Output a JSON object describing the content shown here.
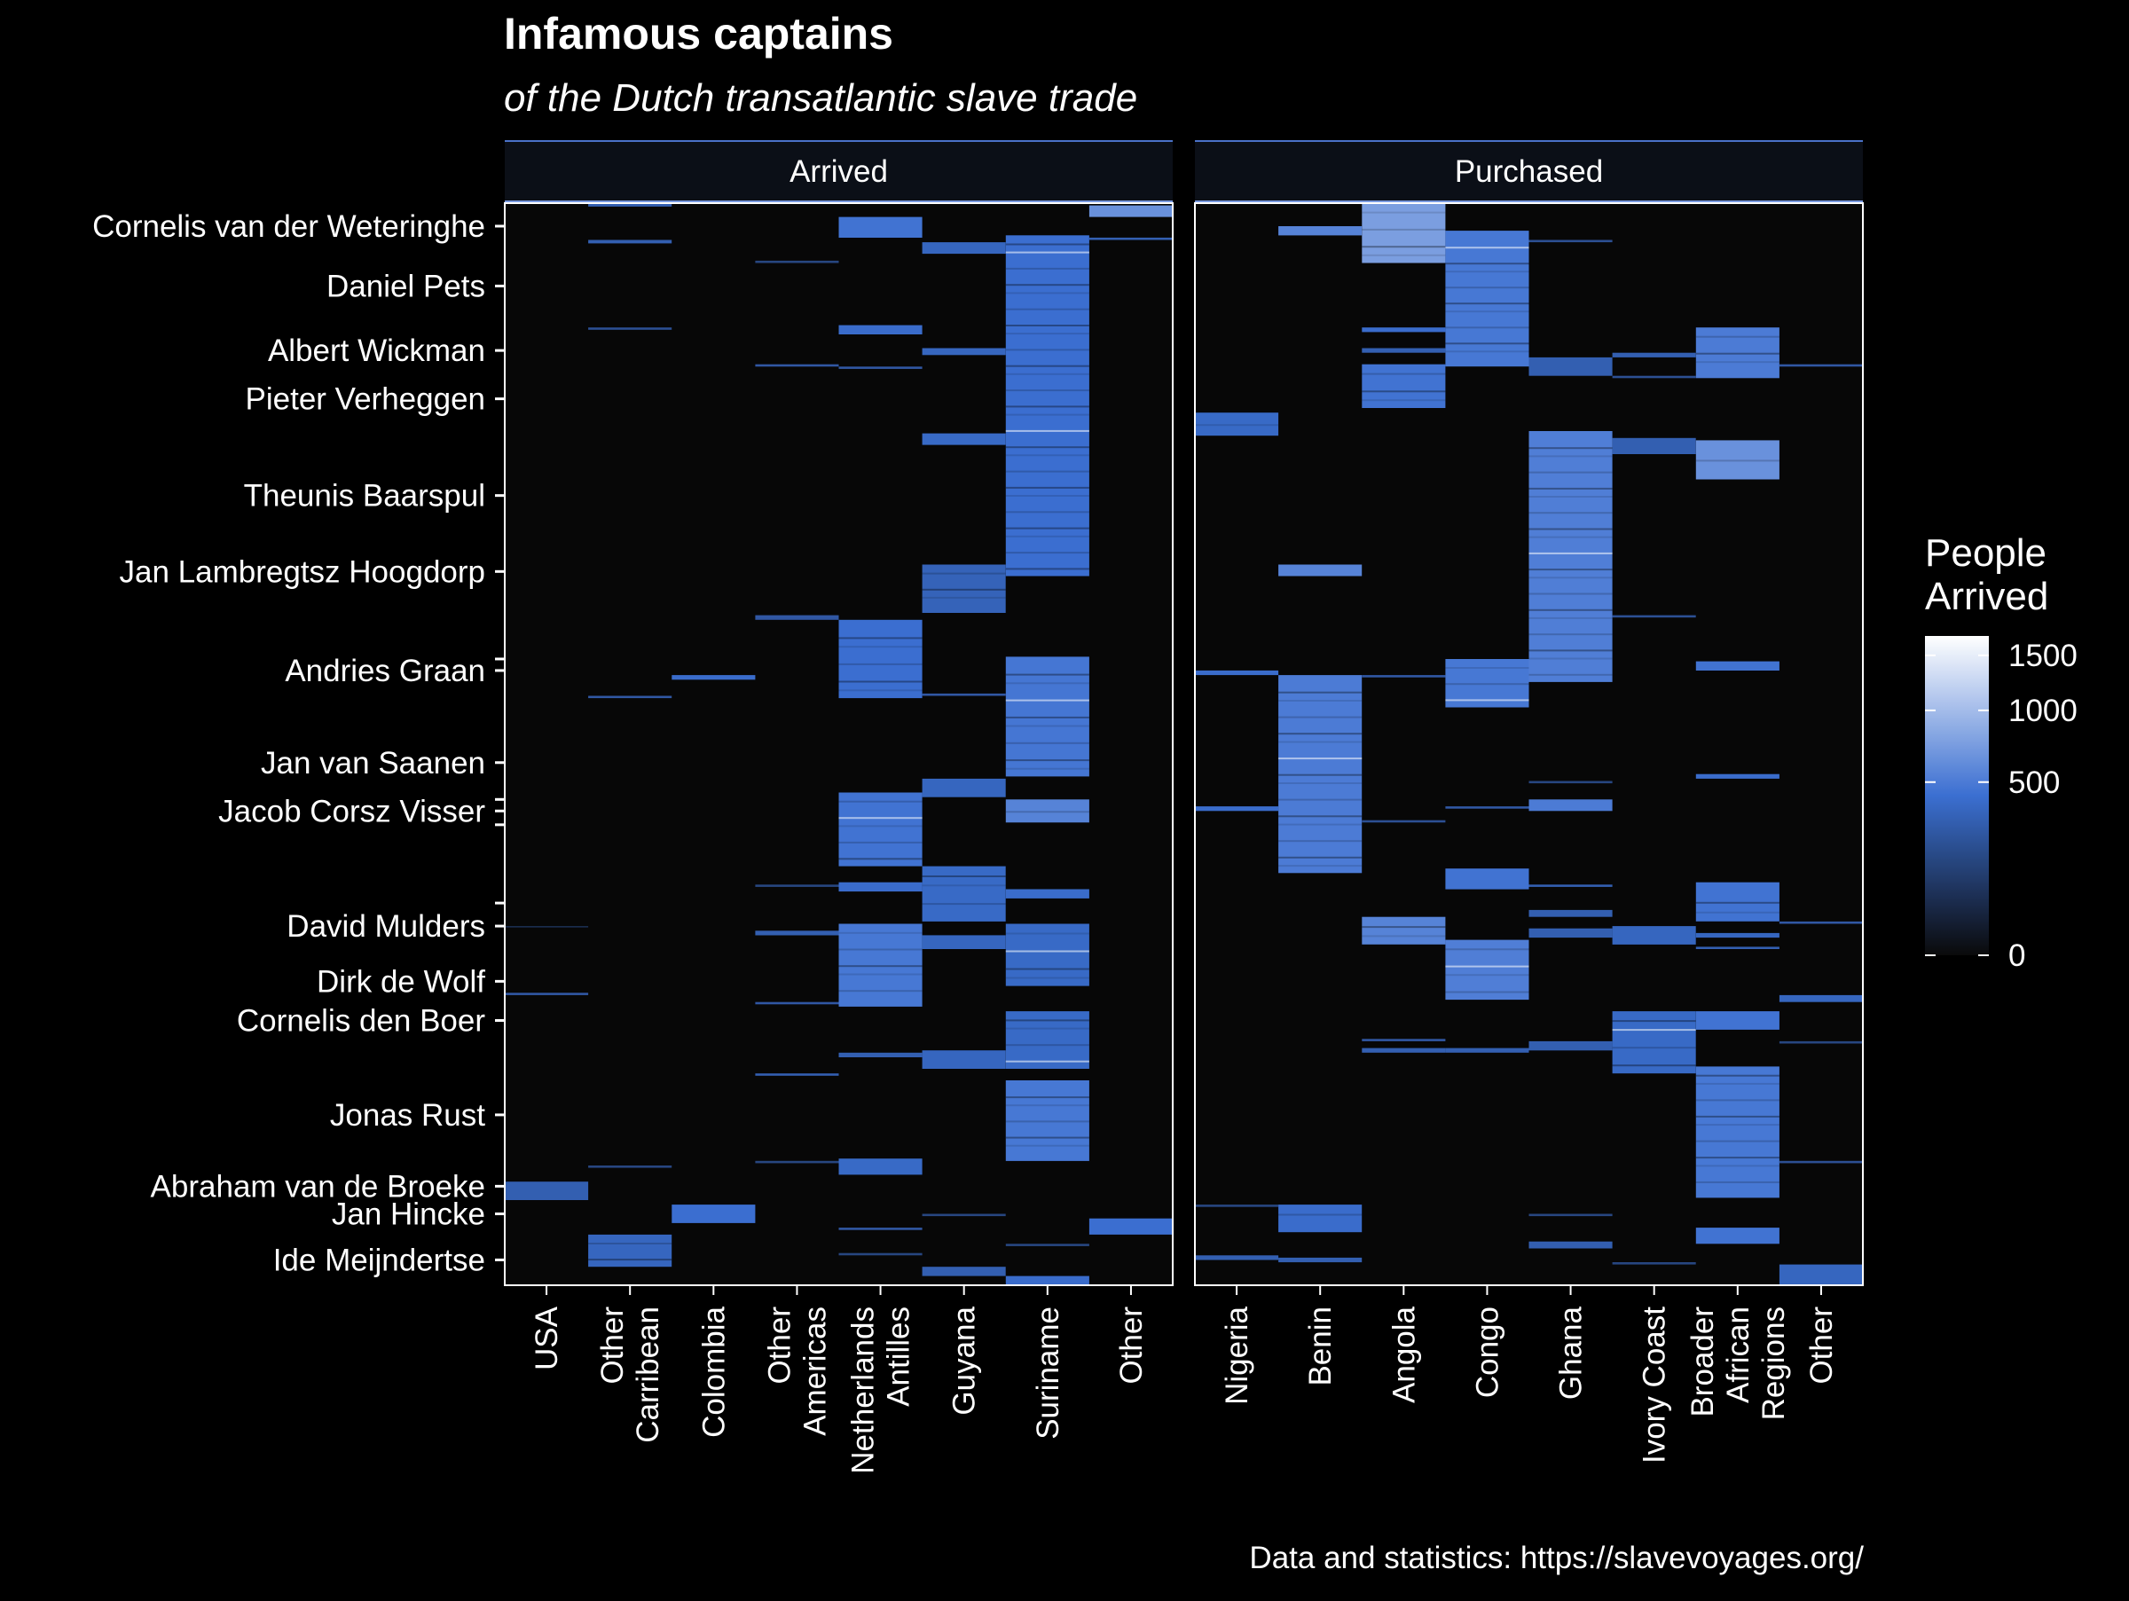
{
  "chart_data": {
    "type": "heatmap",
    "title": "Infamous captains",
    "subtitle": "of the Dutch transatlantic slave trade",
    "caption": "Data and statistics: https://slavevoyages.org/",
    "facets": [
      {
        "name": "Arrived",
        "categories": [
          "USA",
          "Other Carribean",
          "Colombia",
          "Other Americas",
          "Netherlands Antilles",
          "Guyana",
          "Suriname",
          "Other"
        ],
        "tick_lines": [
          [
            "USA"
          ],
          [
            "Other",
            "Carribean"
          ],
          [
            "Colombia"
          ],
          [
            "Other",
            "Americas"
          ],
          [
            "Netherlands",
            "Antilles"
          ],
          [
            "Guyana"
          ],
          [
            "Suriname"
          ],
          [
            "Other"
          ]
        ]
      },
      {
        "name": "Purchased",
        "categories": [
          "Nigeria",
          "Benin",
          "Angola",
          "Congo",
          "Ghana",
          "Ivory Coast",
          "Broader African Regions",
          "Other"
        ],
        "tick_lines": [
          [
            "Nigeria"
          ],
          [
            "Benin"
          ],
          [
            "Angola"
          ],
          [
            "Congo"
          ],
          [
            "Ghana"
          ],
          [
            "Ivory Coast"
          ],
          [
            "Broader",
            "African",
            "Regions"
          ],
          [
            "Other"
          ]
        ]
      }
    ],
    "ylabels": [
      "Cornelis van der Weteringhe",
      "Daniel Pets",
      "Albert Wickman",
      "Pieter Verheggen",
      "Theunis Baarspul",
      "Jan Lambregtsz Hoogdorp",
      "Andries Graan",
      "Jan van Saanen",
      "Jacob Corsz Visser",
      "David Mulders",
      "Dirk de Wolf",
      "Cornelis den Boer",
      "Jonas Rust",
      "Abraham van de Broeke",
      "Jan Hincke",
      "Ide Meijndertse"
    ],
    "captain_rows": [
      {
        "name": "Cornelis van der Weteringhe",
        "row": 1.0
      },
      {
        "name": "Daniel Pets",
        "row": 3.6
      },
      {
        "name": "Albert Wickman",
        "row": 6.4
      },
      {
        "name": "Pieter Verheggen",
        "row": 8.5
      },
      {
        "name": "Theunis Baarspul",
        "row": 12.7
      },
      {
        "name": "Jan Lambregtsz Hoogdorp",
        "row": 16.0
      },
      {
        "name": "Andries Graan",
        "row": 20.3
      },
      {
        "name": "Jan van Saanen",
        "row": 24.3
      },
      {
        "name": "Jacob Corsz Visser",
        "row": 26.4
      },
      {
        "name": "David Mulders",
        "row": 31.4
      },
      {
        "name": "Dirk de Wolf",
        "row": 33.8
      },
      {
        "name": "Cornelis den Boer",
        "row": 35.5
      },
      {
        "name": "Jonas Rust",
        "row": 39.6
      },
      {
        "name": "Abraham van de Broeke",
        "row": 42.7
      },
      {
        "name": "Jan Hincke",
        "row": 43.9
      },
      {
        "name": "Ide Meijndertse",
        "row": 45.9
      }
    ],
    "unlabeled_tick_rows": [
      19.8,
      25.9,
      27.0,
      30.4
    ],
    "y_range": [
      0,
      47
    ],
    "legend": {
      "title_lines": [
        "People",
        "Arrived"
      ],
      "breaks": [
        0,
        500,
        1000,
        1500
      ],
      "tick_labels": [
        "0",
        "500",
        "1000",
        "1500"
      ],
      "max": 1700,
      "transform": "sqrt",
      "colors": [
        "#0a0a0a",
        "#3b6fd1",
        "#ffffff"
      ]
    },
    "cells": {
      "Arrived": [
        {
          "col": 0,
          "y0": 42.5,
          "y1": 43.3,
          "value": 300
        },
        {
          "col": 0,
          "y0": 31.4,
          "y1": 31.45,
          "value": 60
        },
        {
          "col": 0,
          "y0": 34.3,
          "y1": 34.4,
          "value": 250
        },
        {
          "col": 1,
          "y0": 0.0,
          "y1": 0.15,
          "value": 300
        },
        {
          "col": 1,
          "y0": 1.6,
          "y1": 1.75,
          "value": 300
        },
        {
          "col": 1,
          "y0": 5.4,
          "y1": 5.5,
          "value": 200
        },
        {
          "col": 1,
          "y0": 21.4,
          "y1": 21.5,
          "value": 250
        },
        {
          "col": 1,
          "y0": 41.8,
          "y1": 41.9,
          "value": 150
        },
        {
          "col": 1,
          "y0": 44.8,
          "y1": 46.2,
          "value": 350
        },
        {
          "col": 2,
          "y0": 20.5,
          "y1": 20.7,
          "value": 400
        },
        {
          "col": 2,
          "y0": 43.5,
          "y1": 44.3,
          "value": 420
        },
        {
          "col": 3,
          "y0": 2.5,
          "y1": 2.6,
          "value": 150
        },
        {
          "col": 3,
          "y0": 7.0,
          "y1": 7.1,
          "value": 250
        },
        {
          "col": 3,
          "y0": 17.9,
          "y1": 18.1,
          "value": 250
        },
        {
          "col": 3,
          "y0": 29.6,
          "y1": 29.7,
          "value": 150
        },
        {
          "col": 3,
          "y0": 31.6,
          "y1": 31.8,
          "value": 300
        },
        {
          "col": 3,
          "y0": 34.7,
          "y1": 34.8,
          "value": 250
        },
        {
          "col": 3,
          "y0": 37.8,
          "y1": 37.9,
          "value": 300
        },
        {
          "col": 3,
          "y0": 41.6,
          "y1": 41.7,
          "value": 150
        },
        {
          "col": 4,
          "y0": 0.6,
          "y1": 1.5,
          "value": 450
        },
        {
          "col": 4,
          "y0": 5.3,
          "y1": 5.7,
          "value": 400
        },
        {
          "col": 4,
          "y0": 7.1,
          "y1": 7.2,
          "value": 250
        },
        {
          "col": 4,
          "y0": 18.1,
          "y1": 21.5,
          "value": 420
        },
        {
          "col": 4,
          "y0": 25.6,
          "y1": 28.8,
          "value": 450
        },
        {
          "col": 4,
          "y0": 29.5,
          "y1": 29.9,
          "value": 400
        },
        {
          "col": 4,
          "y0": 31.3,
          "y1": 34.9,
          "value": 480
        },
        {
          "col": 4,
          "y0": 36.9,
          "y1": 37.1,
          "value": 300
        },
        {
          "col": 4,
          "y0": 41.5,
          "y1": 42.2,
          "value": 380
        },
        {
          "col": 4,
          "y0": 44.5,
          "y1": 44.6,
          "value": 250
        },
        {
          "col": 4,
          "y0": 45.6,
          "y1": 45.7,
          "value": 150
        },
        {
          "col": 5,
          "y0": 1.7,
          "y1": 2.2,
          "value": 350
        },
        {
          "col": 5,
          "y0": 6.3,
          "y1": 6.6,
          "value": 350
        },
        {
          "col": 5,
          "y0": 10.0,
          "y1": 10.5,
          "value": 380
        },
        {
          "col": 5,
          "y0": 15.7,
          "y1": 17.8,
          "value": 330
        },
        {
          "col": 5,
          "y0": 21.3,
          "y1": 21.4,
          "value": 250
        },
        {
          "col": 5,
          "y0": 25.0,
          "y1": 25.8,
          "value": 350
        },
        {
          "col": 5,
          "y0": 28.8,
          "y1": 31.2,
          "value": 380
        },
        {
          "col": 5,
          "y0": 31.8,
          "y1": 32.4,
          "value": 350
        },
        {
          "col": 5,
          "y0": 36.8,
          "y1": 37.6,
          "value": 350
        },
        {
          "col": 5,
          "y0": 43.9,
          "y1": 44.0,
          "value": 150
        },
        {
          "col": 5,
          "y0": 46.2,
          "y1": 46.6,
          "value": 300
        },
        {
          "col": 6,
          "y0": 1.4,
          "y1": 16.2,
          "value": 420
        },
        {
          "col": 6,
          "y0": 19.7,
          "y1": 24.9,
          "value": 470
        },
        {
          "col": 6,
          "y0": 25.9,
          "y1": 26.9,
          "value": 550
        },
        {
          "col": 6,
          "y0": 29.8,
          "y1": 30.2,
          "value": 400
        },
        {
          "col": 6,
          "y0": 31.3,
          "y1": 34.0,
          "value": 380
        },
        {
          "col": 6,
          "y0": 35.1,
          "y1": 37.6,
          "value": 380
        },
        {
          "col": 6,
          "y0": 38.1,
          "y1": 41.6,
          "value": 480
        },
        {
          "col": 6,
          "y0": 45.2,
          "y1": 45.3,
          "value": 150
        },
        {
          "col": 6,
          "y0": 46.6,
          "y1": 47.0,
          "value": 400
        },
        {
          "col": 7,
          "y0": 0.1,
          "y1": 0.6,
          "value": 650
        },
        {
          "col": 7,
          "y0": 1.5,
          "y1": 1.6,
          "value": 300
        },
        {
          "col": 7,
          "y0": 44.1,
          "y1": 44.8,
          "value": 420
        }
      ],
      "Purchased": [
        {
          "col": 0,
          "y0": 9.1,
          "y1": 10.1,
          "value": 380
        },
        {
          "col": 0,
          "y0": 20.3,
          "y1": 20.5,
          "value": 400
        },
        {
          "col": 0,
          "y0": 26.2,
          "y1": 26.4,
          "value": 400
        },
        {
          "col": 0,
          "y0": 43.5,
          "y1": 43.6,
          "value": 150
        },
        {
          "col": 0,
          "y0": 45.7,
          "y1": 45.9,
          "value": 300
        },
        {
          "col": 1,
          "y0": 1.0,
          "y1": 1.4,
          "value": 550
        },
        {
          "col": 1,
          "y0": 15.7,
          "y1": 16.2,
          "value": 550
        },
        {
          "col": 1,
          "y0": 20.5,
          "y1": 29.1,
          "value": 500
        },
        {
          "col": 1,
          "y0": 43.5,
          "y1": 44.7,
          "value": 400
        },
        {
          "col": 1,
          "y0": 45.8,
          "y1": 46.0,
          "value": 300
        },
        {
          "col": 2,
          "y0": 0.0,
          "y1": 2.6,
          "value": 750
        },
        {
          "col": 2,
          "y0": 5.4,
          "y1": 5.6,
          "value": 400
        },
        {
          "col": 2,
          "y0": 6.3,
          "y1": 6.5,
          "value": 300
        },
        {
          "col": 2,
          "y0": 7.0,
          "y1": 8.9,
          "value": 450
        },
        {
          "col": 2,
          "y0": 20.5,
          "y1": 20.6,
          "value": 250
        },
        {
          "col": 2,
          "y0": 26.8,
          "y1": 26.9,
          "value": 200
        },
        {
          "col": 2,
          "y0": 31.0,
          "y1": 32.2,
          "value": 550
        },
        {
          "col": 2,
          "y0": 36.3,
          "y1": 36.4,
          "value": 250
        },
        {
          "col": 2,
          "y0": 36.7,
          "y1": 36.9,
          "value": 300
        },
        {
          "col": 3,
          "y0": 1.2,
          "y1": 7.1,
          "value": 480
        },
        {
          "col": 3,
          "y0": 19.8,
          "y1": 21.9,
          "value": 480
        },
        {
          "col": 3,
          "y0": 26.2,
          "y1": 26.3,
          "value": 250
        },
        {
          "col": 3,
          "y0": 28.9,
          "y1": 29.8,
          "value": 450
        },
        {
          "col": 3,
          "y0": 32.0,
          "y1": 34.6,
          "value": 520
        },
        {
          "col": 3,
          "y0": 36.7,
          "y1": 36.9,
          "value": 300
        },
        {
          "col": 4,
          "y0": 1.6,
          "y1": 1.7,
          "value": 200
        },
        {
          "col": 4,
          "y0": 6.7,
          "y1": 7.5,
          "value": 300
        },
        {
          "col": 4,
          "y0": 9.9,
          "y1": 20.8,
          "value": 520
        },
        {
          "col": 4,
          "y0": 25.1,
          "y1": 25.2,
          "value": 150
        },
        {
          "col": 4,
          "y0": 25.9,
          "y1": 26.4,
          "value": 500
        },
        {
          "col": 4,
          "y0": 29.6,
          "y1": 29.7,
          "value": 300
        },
        {
          "col": 4,
          "y0": 30.7,
          "y1": 31.0,
          "value": 300
        },
        {
          "col": 4,
          "y0": 31.5,
          "y1": 31.9,
          "value": 300
        },
        {
          "col": 4,
          "y0": 36.4,
          "y1": 36.8,
          "value": 300
        },
        {
          "col": 4,
          "y0": 43.9,
          "y1": 44.0,
          "value": 150
        },
        {
          "col": 4,
          "y0": 45.1,
          "y1": 45.4,
          "value": 300
        },
        {
          "col": 5,
          "y0": 6.5,
          "y1": 6.7,
          "value": 300
        },
        {
          "col": 5,
          "y0": 7.5,
          "y1": 7.6,
          "value": 200
        },
        {
          "col": 5,
          "y0": 10.2,
          "y1": 10.9,
          "value": 300
        },
        {
          "col": 5,
          "y0": 17.9,
          "y1": 18.0,
          "value": 200
        },
        {
          "col": 5,
          "y0": 31.4,
          "y1": 32.2,
          "value": 350
        },
        {
          "col": 5,
          "y0": 35.1,
          "y1": 37.8,
          "value": 380
        },
        {
          "col": 5,
          "y0": 46.0,
          "y1": 46.1,
          "value": 150
        },
        {
          "col": 6,
          "y0": 5.4,
          "y1": 7.6,
          "value": 500
        },
        {
          "col": 6,
          "y0": 10.3,
          "y1": 12.0,
          "value": 650
        },
        {
          "col": 6,
          "y0": 19.9,
          "y1": 20.3,
          "value": 450
        },
        {
          "col": 6,
          "y0": 24.8,
          "y1": 25.0,
          "value": 400
        },
        {
          "col": 6,
          "y0": 29.5,
          "y1": 31.2,
          "value": 450
        },
        {
          "col": 6,
          "y0": 31.7,
          "y1": 31.9,
          "value": 350
        },
        {
          "col": 6,
          "y0": 32.3,
          "y1": 32.4,
          "value": 300
        },
        {
          "col": 6,
          "y0": 35.1,
          "y1": 35.9,
          "value": 450
        },
        {
          "col": 6,
          "y0": 37.5,
          "y1": 43.2,
          "value": 480
        },
        {
          "col": 6,
          "y0": 44.5,
          "y1": 45.2,
          "value": 450
        },
        {
          "col": 7,
          "y0": 7.0,
          "y1": 7.1,
          "value": 250
        },
        {
          "col": 7,
          "y0": 31.2,
          "y1": 31.3,
          "value": 250
        },
        {
          "col": 7,
          "y0": 34.4,
          "y1": 34.7,
          "value": 350
        },
        {
          "col": 7,
          "y0": 36.4,
          "y1": 36.5,
          "value": 150
        },
        {
          "col": 7,
          "y0": 41.6,
          "y1": 41.7,
          "value": 200
        },
        {
          "col": 7,
          "y0": 46.1,
          "y1": 47.0,
          "value": 350
        }
      ]
    }
  }
}
